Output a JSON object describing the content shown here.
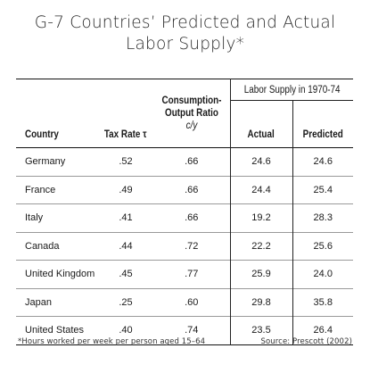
{
  "title": {
    "line1": "G-7 Countries’ Predicted and Actual",
    "line2": "Labor Supply*"
  },
  "table": {
    "group_header": "Labor Supply in 1970-74",
    "columns": {
      "country": "Country",
      "tax_rate": "Tax Rate τ",
      "consumption_line1": "Consumption-",
      "consumption_line2": "Output Ratio",
      "consumption_symbol": "c/y",
      "actual": "Actual",
      "predicted": "Predicted"
    },
    "rows": [
      {
        "country": "Germany",
        "tax_rate": ".52",
        "cy": ".66",
        "actual": "24.6",
        "predicted": "24.6"
      },
      {
        "country": "France",
        "tax_rate": ".49",
        "cy": ".66",
        "actual": "24.4",
        "predicted": "25.4"
      },
      {
        "country": "Italy",
        "tax_rate": ".41",
        "cy": ".66",
        "actual": "19.2",
        "predicted": "28.3"
      },
      {
        "country": "Canada",
        "tax_rate": ".44",
        "cy": ".72",
        "actual": "22.2",
        "predicted": "25.6"
      },
      {
        "country": "United Kingdom",
        "tax_rate": ".45",
        "cy": ".77",
        "actual": "25.9",
        "predicted": "24.0"
      },
      {
        "country": "Japan",
        "tax_rate": ".25",
        "cy": ".60",
        "actual": "29.8",
        "predicted": "35.8"
      },
      {
        "country": "United States",
        "tax_rate": ".40",
        "cy": ".74",
        "actual": "23.5",
        "predicted": "26.4"
      }
    ]
  },
  "footnote": "*Hours worked per week per person aged 15–64",
  "source": "Source: Prescott (2002)"
}
